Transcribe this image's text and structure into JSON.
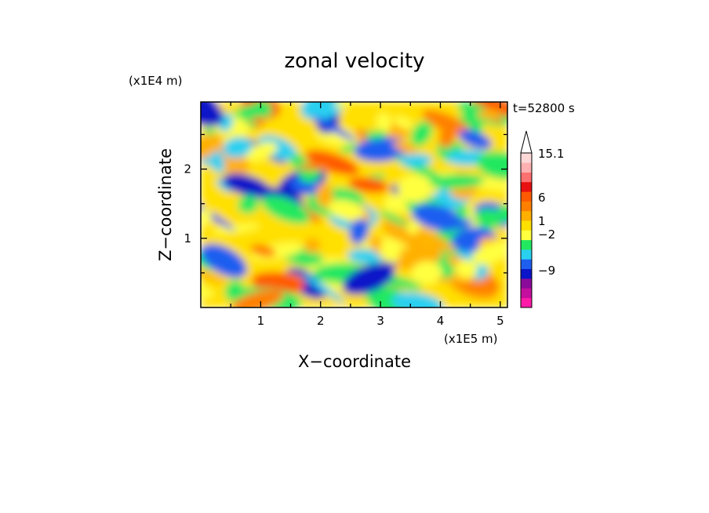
{
  "chart_data": {
    "type": "heatmap",
    "title": "zonal velocity",
    "xlabel": "X−coordinate",
    "ylabel": "Z−coordinate",
    "x_unit": "(x1E5 m)",
    "y_unit": "(x1E4 m)",
    "time_label": "t=52800 s",
    "xlim": [
      0,
      5.12
    ],
    "ylim": [
      0,
      2.97
    ],
    "x_ticks": [
      "1",
      "2",
      "3",
      "4",
      "5"
    ],
    "x_tick_values": [
      1,
      2,
      3,
      4,
      5
    ],
    "y_ticks": [
      "1",
      "2"
    ],
    "y_tick_values": [
      1,
      2
    ],
    "grid": false,
    "colorbar": {
      "colors": [
        "#ff1aa8",
        "#c40e9e",
        "#8a0a9a",
        "#0a14c8",
        "#1e5ff0",
        "#2ad0f0",
        "#22e860",
        "#ffff40",
        "#ffe000",
        "#ffb000",
        "#ff8000",
        "#ff5a00",
        "#e81010",
        "#ff7070",
        "#ffb0b0",
        "#ffd8d8"
      ],
      "tick_labels": [
        "15.1",
        "6",
        "1",
        "−2",
        "−9"
      ],
      "tick_values": [
        15.1,
        6,
        1,
        -2,
        -9
      ],
      "extend": "max"
    }
  }
}
